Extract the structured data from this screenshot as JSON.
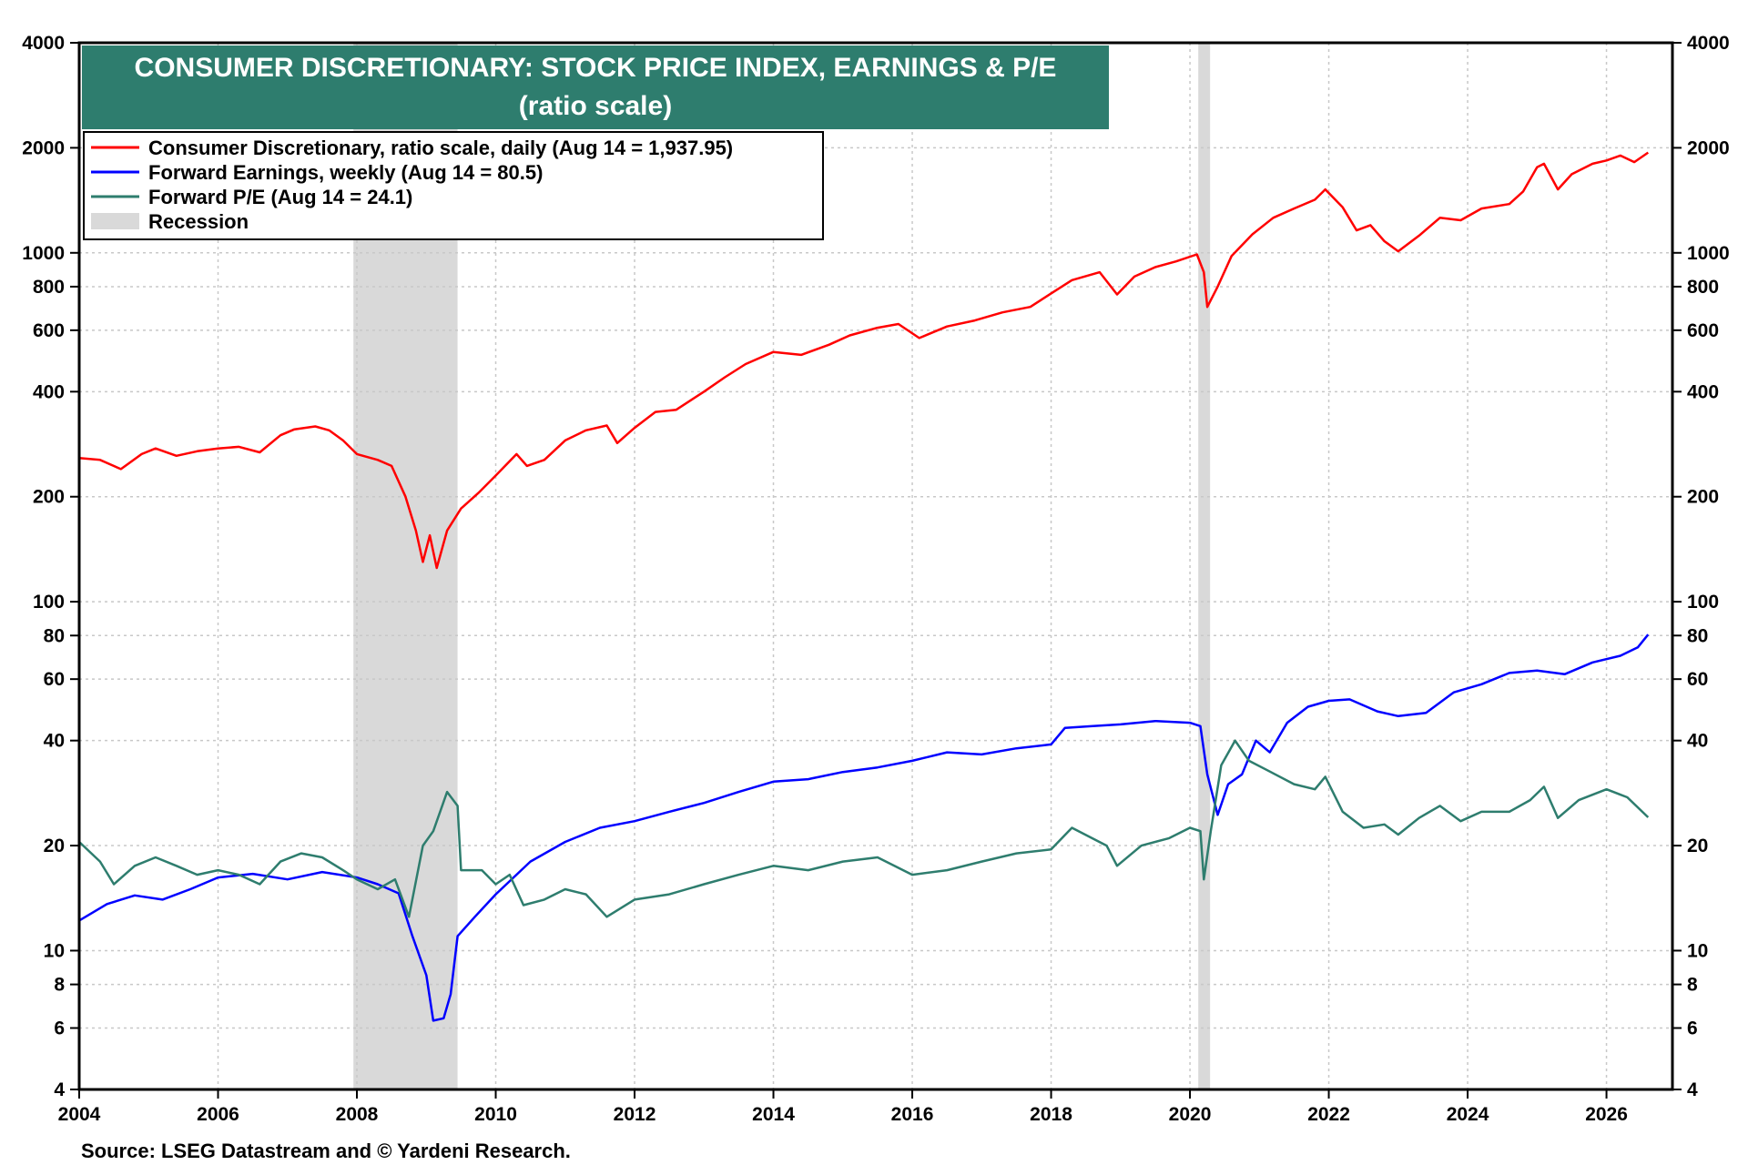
{
  "chart_data": {
    "type": "line",
    "title": "CONSUMER DISCRETIONARY: STOCK PRICE INDEX, EARNINGS & P/E",
    "subtitle": "(ratio scale)",
    "source": "Source: LSEG Datastream and © Yardeni Research.",
    "y_scale": "log",
    "ylim": [
      4,
      4000
    ],
    "xlim": [
      2004.0,
      2026.95
    ],
    "grid": true,
    "legend_position": "top-left",
    "y_ticks": [
      {
        "value": 4,
        "label": "4"
      },
      {
        "value": 6,
        "label": "6"
      },
      {
        "value": 8,
        "label": "8"
      },
      {
        "value": 10,
        "label": "10"
      },
      {
        "value": 20,
        "label": "20"
      },
      {
        "value": 40,
        "label": "40"
      },
      {
        "value": 60,
        "label": "60"
      },
      {
        "value": 80,
        "label": "80"
      },
      {
        "value": 100,
        "label": "100"
      },
      {
        "value": 200,
        "label": "200"
      },
      {
        "value": 400,
        "label": "400"
      },
      {
        "value": 600,
        "label": "600"
      },
      {
        "value": 800,
        "label": "800"
      },
      {
        "value": 1000,
        "label": "1000"
      },
      {
        "value": 2000,
        "label": "2000"
      },
      {
        "value": 4000,
        "label": "4000"
      }
    ],
    "x_ticks": [
      {
        "value": 2004,
        "label": "2004"
      },
      {
        "value": 2006,
        "label": "2006"
      },
      {
        "value": 2008,
        "label": "2008"
      },
      {
        "value": 2010,
        "label": "2010"
      },
      {
        "value": 2012,
        "label": "2012"
      },
      {
        "value": 2014,
        "label": "2014"
      },
      {
        "value": 2016,
        "label": "2016"
      },
      {
        "value": 2018,
        "label": "2018"
      },
      {
        "value": 2020,
        "label": "2020"
      },
      {
        "value": 2022,
        "label": "2022"
      },
      {
        "value": 2024,
        "label": "2024"
      },
      {
        "value": 2026,
        "label": "2026"
      }
    ],
    "recessions": [
      {
        "start": 2007.95,
        "end": 2009.45
      },
      {
        "start": 2020.12,
        "end": 2020.29
      }
    ],
    "recession_legend": "Recession",
    "recession_color": "#d9d9d9",
    "title_bg": "#2e7d6e",
    "series": [
      {
        "name": "Consumer Discretionary, ratio scale, daily (Aug 14 = 1,937.95)",
        "color": "#ff0000",
        "points": [
          [
            2004.0,
            258
          ],
          [
            2004.3,
            255
          ],
          [
            2004.6,
            240
          ],
          [
            2004.9,
            265
          ],
          [
            2005.1,
            275
          ],
          [
            2005.4,
            262
          ],
          [
            2005.7,
            270
          ],
          [
            2006.0,
            275
          ],
          [
            2006.3,
            278
          ],
          [
            2006.6,
            268
          ],
          [
            2006.9,
            300
          ],
          [
            2007.1,
            312
          ],
          [
            2007.4,
            318
          ],
          [
            2007.6,
            310
          ],
          [
            2007.8,
            290
          ],
          [
            2008.0,
            265
          ],
          [
            2008.3,
            255
          ],
          [
            2008.5,
            245
          ],
          [
            2008.7,
            200
          ],
          [
            2008.85,
            160
          ],
          [
            2008.95,
            130
          ],
          [
            2009.05,
            155
          ],
          [
            2009.15,
            125
          ],
          [
            2009.3,
            160
          ],
          [
            2009.5,
            185
          ],
          [
            2009.75,
            205
          ],
          [
            2010.0,
            230
          ],
          [
            2010.3,
            265
          ],
          [
            2010.45,
            245
          ],
          [
            2010.7,
            255
          ],
          [
            2011.0,
            290
          ],
          [
            2011.3,
            310
          ],
          [
            2011.6,
            320
          ],
          [
            2011.75,
            285
          ],
          [
            2012.0,
            315
          ],
          [
            2012.3,
            350
          ],
          [
            2012.6,
            355
          ],
          [
            2013.0,
            400
          ],
          [
            2013.3,
            440
          ],
          [
            2013.6,
            480
          ],
          [
            2014.0,
            520
          ],
          [
            2014.4,
            510
          ],
          [
            2014.8,
            545
          ],
          [
            2015.1,
            580
          ],
          [
            2015.5,
            610
          ],
          [
            2015.8,
            625
          ],
          [
            2016.1,
            570
          ],
          [
            2016.5,
            615
          ],
          [
            2016.9,
            640
          ],
          [
            2017.3,
            675
          ],
          [
            2017.7,
            700
          ],
          [
            2018.0,
            765
          ],
          [
            2018.3,
            835
          ],
          [
            2018.7,
            880
          ],
          [
            2018.95,
            760
          ],
          [
            2019.2,
            855
          ],
          [
            2019.5,
            910
          ],
          [
            2019.8,
            945
          ],
          [
            2020.1,
            990
          ],
          [
            2020.2,
            880
          ],
          [
            2020.25,
            700
          ],
          [
            2020.4,
            800
          ],
          [
            2020.6,
            980
          ],
          [
            2020.9,
            1130
          ],
          [
            2021.2,
            1260
          ],
          [
            2021.5,
            1340
          ],
          [
            2021.8,
            1420
          ],
          [
            2021.95,
            1520
          ],
          [
            2022.2,
            1350
          ],
          [
            2022.4,
            1160
          ],
          [
            2022.6,
            1200
          ],
          [
            2022.8,
            1080
          ],
          [
            2023.0,
            1010
          ],
          [
            2023.3,
            1120
          ],
          [
            2023.6,
            1260
          ],
          [
            2023.9,
            1240
          ],
          [
            2024.2,
            1340
          ],
          [
            2024.6,
            1380
          ],
          [
            2024.8,
            1500
          ],
          [
            2025.0,
            1760
          ],
          [
            2025.1,
            1800
          ],
          [
            2025.3,
            1520
          ],
          [
            2025.5,
            1680
          ],
          [
            2025.8,
            1800
          ],
          [
            2026.0,
            1840
          ],
          [
            2026.2,
            1900
          ],
          [
            2026.4,
            1820
          ],
          [
            2026.6,
            1937.95
          ]
        ]
      },
      {
        "name": "Forward Earnings, weekly (Aug 14 = 80.5)",
        "color": "#0000ff",
        "points": [
          [
            2004.0,
            12.2
          ],
          [
            2004.4,
            13.6
          ],
          [
            2004.8,
            14.4
          ],
          [
            2005.2,
            14.0
          ],
          [
            2005.6,
            15.0
          ],
          [
            2006.0,
            16.2
          ],
          [
            2006.5,
            16.6
          ],
          [
            2007.0,
            16.0
          ],
          [
            2007.5,
            16.8
          ],
          [
            2008.0,
            16.2
          ],
          [
            2008.3,
            15.5
          ],
          [
            2008.6,
            14.6
          ],
          [
            2008.8,
            11.0
          ],
          [
            2009.0,
            8.5
          ],
          [
            2009.1,
            6.3
          ],
          [
            2009.25,
            6.4
          ],
          [
            2009.35,
            7.5
          ],
          [
            2009.45,
            11.0
          ],
          [
            2009.7,
            12.5
          ],
          [
            2010.0,
            14.5
          ],
          [
            2010.5,
            18.0
          ],
          [
            2011.0,
            20.5
          ],
          [
            2011.5,
            22.5
          ],
          [
            2012.0,
            23.5
          ],
          [
            2012.5,
            25.0
          ],
          [
            2013.0,
            26.5
          ],
          [
            2013.5,
            28.5
          ],
          [
            2014.0,
            30.5
          ],
          [
            2014.5,
            31.0
          ],
          [
            2015.0,
            32.5
          ],
          [
            2015.5,
            33.5
          ],
          [
            2016.0,
            35.0
          ],
          [
            2016.5,
            37.0
          ],
          [
            2017.0,
            36.5
          ],
          [
            2017.5,
            38.0
          ],
          [
            2018.0,
            39.0
          ],
          [
            2018.2,
            43.5
          ],
          [
            2018.6,
            44.0
          ],
          [
            2019.0,
            44.5
          ],
          [
            2019.5,
            45.5
          ],
          [
            2020.0,
            45.0
          ],
          [
            2020.15,
            44.0
          ],
          [
            2020.25,
            32.0
          ],
          [
            2020.4,
            24.5
          ],
          [
            2020.55,
            30.0
          ],
          [
            2020.75,
            32.0
          ],
          [
            2020.95,
            40.0
          ],
          [
            2021.15,
            37.0
          ],
          [
            2021.4,
            45.0
          ],
          [
            2021.7,
            50.0
          ],
          [
            2022.0,
            52.0
          ],
          [
            2022.3,
            52.5
          ],
          [
            2022.7,
            48.5
          ],
          [
            2023.0,
            47.0
          ],
          [
            2023.4,
            48.0
          ],
          [
            2023.8,
            55.0
          ],
          [
            2024.2,
            58.0
          ],
          [
            2024.6,
            62.5
          ],
          [
            2025.0,
            63.5
          ],
          [
            2025.4,
            62.0
          ],
          [
            2025.8,
            67.0
          ],
          [
            2026.2,
            70.0
          ],
          [
            2026.45,
            74.0
          ],
          [
            2026.6,
            80.5
          ]
        ]
      },
      {
        "name": "Forward P/E (Aug 14 = 24.1)",
        "color": "#2e7d6e",
        "points": [
          [
            2004.0,
            20.5
          ],
          [
            2004.3,
            18.0
          ],
          [
            2004.5,
            15.5
          ],
          [
            2004.8,
            17.5
          ],
          [
            2005.1,
            18.5
          ],
          [
            2005.4,
            17.5
          ],
          [
            2005.7,
            16.5
          ],
          [
            2006.0,
            17.0
          ],
          [
            2006.3,
            16.5
          ],
          [
            2006.6,
            15.5
          ],
          [
            2006.9,
            18.0
          ],
          [
            2007.2,
            19.0
          ],
          [
            2007.5,
            18.5
          ],
          [
            2007.8,
            17.0
          ],
          [
            2008.0,
            16.0
          ],
          [
            2008.3,
            15.0
          ],
          [
            2008.55,
            16.0
          ],
          [
            2008.75,
            12.5
          ],
          [
            2008.95,
            20.0
          ],
          [
            2009.1,
            22.0
          ],
          [
            2009.3,
            28.5
          ],
          [
            2009.45,
            26.0
          ],
          [
            2009.5,
            17.0
          ],
          [
            2009.8,
            17.0
          ],
          [
            2010.0,
            15.5
          ],
          [
            2010.2,
            16.5
          ],
          [
            2010.4,
            13.5
          ],
          [
            2010.7,
            14.0
          ],
          [
            2011.0,
            15.0
          ],
          [
            2011.3,
            14.5
          ],
          [
            2011.6,
            12.5
          ],
          [
            2012.0,
            14.0
          ],
          [
            2012.5,
            14.5
          ],
          [
            2013.0,
            15.5
          ],
          [
            2013.5,
            16.5
          ],
          [
            2014.0,
            17.5
          ],
          [
            2014.5,
            17.0
          ],
          [
            2015.0,
            18.0
          ],
          [
            2015.5,
            18.5
          ],
          [
            2016.0,
            16.5
          ],
          [
            2016.5,
            17.0
          ],
          [
            2017.0,
            18.0
          ],
          [
            2017.5,
            19.0
          ],
          [
            2018.0,
            19.5
          ],
          [
            2018.3,
            22.5
          ],
          [
            2018.8,
            20.0
          ],
          [
            2018.95,
            17.5
          ],
          [
            2019.3,
            20.0
          ],
          [
            2019.7,
            21.0
          ],
          [
            2020.0,
            22.5
          ],
          [
            2020.15,
            22.0
          ],
          [
            2020.2,
            16.0
          ],
          [
            2020.3,
            22.0
          ],
          [
            2020.45,
            34.0
          ],
          [
            2020.65,
            40.0
          ],
          [
            2020.85,
            35.0
          ],
          [
            2021.1,
            33.0
          ],
          [
            2021.5,
            30.0
          ],
          [
            2021.8,
            29.0
          ],
          [
            2021.95,
            31.5
          ],
          [
            2022.2,
            25.0
          ],
          [
            2022.5,
            22.5
          ],
          [
            2022.8,
            23.0
          ],
          [
            2023.0,
            21.5
          ],
          [
            2023.3,
            24.0
          ],
          [
            2023.6,
            26.0
          ],
          [
            2023.9,
            23.5
          ],
          [
            2024.2,
            25.0
          ],
          [
            2024.6,
            25.0
          ],
          [
            2024.9,
            27.0
          ],
          [
            2025.1,
            29.5
          ],
          [
            2025.3,
            24.0
          ],
          [
            2025.6,
            27.0
          ],
          [
            2026.0,
            29.0
          ],
          [
            2026.3,
            27.5
          ],
          [
            2026.6,
            24.1
          ]
        ]
      }
    ]
  }
}
